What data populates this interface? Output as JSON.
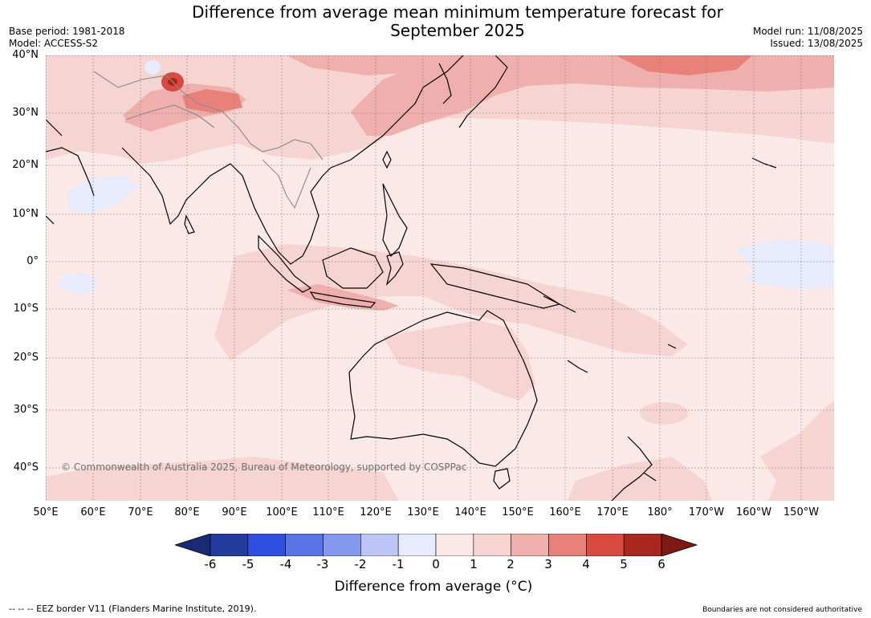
{
  "title_line1": "Difference from average mean minimum temperature forecast for",
  "title_line2": "September 2025",
  "base_period": "Base period: 1981-2018",
  "model": "Model: ACCESS-S2",
  "model_run": "Model run: 11/08/2025",
  "issued": "Issued: 13/08/2025",
  "copyright": "© Commonwealth of Australia 2025, Bureau of Meteorology, supported by COSPPac",
  "lat_labels": [
    "40°N",
    "30°N",
    "20°N",
    "10°N",
    "0°",
    "10°S",
    "20°S",
    "30°S",
    "40°S"
  ],
  "lon_labels": [
    "50°E",
    "60°E",
    "70°E",
    "80°E",
    "90°E",
    "100°E",
    "110°E",
    "120°E",
    "130°E",
    "140°E",
    "150°E",
    "160°E",
    "170°E",
    "180°",
    "170°W",
    "160°W",
    "150°W"
  ],
  "colorbar": {
    "ticks": [
      "-6",
      "-5",
      "-4",
      "-3",
      "-2",
      "-1",
      "0",
      "1",
      "2",
      "3",
      "4",
      "5",
      "6"
    ],
    "colors": [
      "#233a9e",
      "#2f4fe0",
      "#5a73e6",
      "#8698ee",
      "#bcc5f5",
      "#e7ebfb",
      "#fbe9e7",
      "#f6d4d1",
      "#efb0ad",
      "#e9817b",
      "#d9493f",
      "#a8281f"
    ],
    "under_color": "#1a2a75",
    "over_color": "#7d1a14",
    "label": "Difference from average (°C)"
  },
  "footer_left": "--  --  -- EEZ border V11 (Flanders Marine Institute, 2019).",
  "footer_right": "Boundaries are not considered authoritative"
}
